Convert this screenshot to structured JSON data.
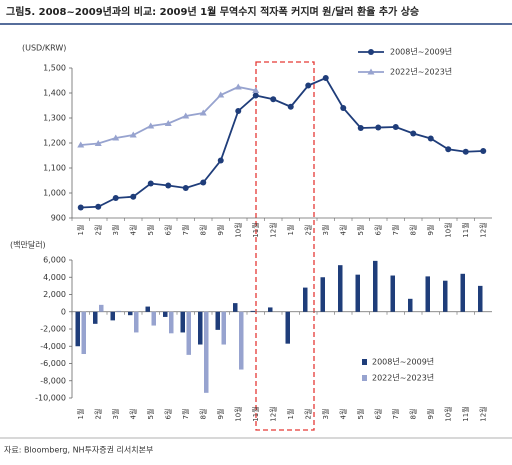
{
  "header": {
    "title": "그림5. 2008~2009년과의 비교: 2009년 1월 무역수지 적자폭 커지며 원/달러 환율 추가 상승"
  },
  "footer": {
    "source": "자료: Bloomberg, NH투자증권 리서치본부"
  },
  "chart_data": [
    {
      "type": "line",
      "y_label": "(USD/KRW)",
      "categories": [
        "1월",
        "2월",
        "3월",
        "4월",
        "5월",
        "6월",
        "7월",
        "8월",
        "9월",
        "10월",
        "11월",
        "12월",
        "1월",
        "2월",
        "3월",
        "4월",
        "5월",
        "6월",
        "7월",
        "8월",
        "9월",
        "10월",
        "11월",
        "12월"
      ],
      "series": [
        {
          "name": "2008년~2009년",
          "color": "#1f3d7a",
          "marker": "circle",
          "values": [
            942,
            945,
            980,
            985,
            1038,
            1030,
            1020,
            1042,
            1130,
            1328,
            1390,
            1375,
            1345,
            1430,
            1460,
            1340,
            1260,
            1262,
            1264,
            1238,
            1218,
            1175,
            1165,
            1168
          ]
        },
        {
          "name": "2022년~2023년",
          "color": "#97a3cf",
          "marker": "triangle",
          "values": [
            1192,
            1198,
            1220,
            1232,
            1268,
            1278,
            1308,
            1320,
            1392,
            1424,
            1410,
            null,
            null,
            null,
            null,
            null,
            null,
            null,
            null,
            null,
            null,
            null,
            null,
            null
          ]
        }
      ],
      "ylim": [
        900,
        1500
      ],
      "yticks": [
        900,
        {
          "value": 1000,
          "label": "1,000"
        },
        {
          "value": 1100,
          "label": "1,100"
        },
        {
          "value": 1200,
          "label": "1,200"
        },
        {
          "value": 1300,
          "label": "1,300"
        },
        {
          "value": 1400,
          "label": "1,400"
        },
        {
          "value": 1500,
          "label": "1,500"
        }
      ],
      "legend": "upper right"
    },
    {
      "type": "bar",
      "y_label": "(백만달러)",
      "categories": [
        "1월",
        "2월",
        "3월",
        "4월",
        "5월",
        "6월",
        "7월",
        "8월",
        "9월",
        "10월",
        "11월",
        "12월",
        "1월",
        "2월",
        "3월",
        "4월",
        "5월",
        "6월",
        "7월",
        "8월",
        "9월",
        "10월",
        "11월",
        "12월"
      ],
      "series": [
        {
          "name": "2008년~2009년",
          "color": "#1f3d7a",
          "values": [
            -4000,
            -1400,
            -1000,
            -400,
            600,
            -600,
            -2400,
            -3800,
            -2100,
            1000,
            100,
            500,
            -3700,
            2800,
            4000,
            5400,
            4300,
            5900,
            4200,
            1500,
            4100,
            3600,
            4400,
            3000
          ]
        },
        {
          "name": "2022년~2023년",
          "color": "#97a3cf",
          "values": [
            -4900,
            800,
            100,
            -2400,
            -1600,
            -2500,
            -5000,
            -9400,
            -3800,
            -6700,
            null,
            null,
            null,
            null,
            null,
            null,
            null,
            null,
            null,
            null,
            null,
            null,
            null,
            null
          ]
        }
      ],
      "ylim": [
        -10000,
        6000
      ],
      "yticks": [
        {
          "value": -10000,
          "label": "-10,000"
        },
        {
          "value": -8000,
          "label": "-8,000"
        },
        {
          "value": -6000,
          "label": "-6,000"
        },
        {
          "value": -4000,
          "label": "-4,000"
        },
        {
          "value": -2000,
          "label": "-2,000"
        },
        0,
        {
          "value": 2000,
          "label": "2,000"
        },
        {
          "value": 4000,
          "label": "4,000"
        },
        {
          "value": 6000,
          "label": "6,000"
        }
      ],
      "legend": "lower right"
    }
  ]
}
